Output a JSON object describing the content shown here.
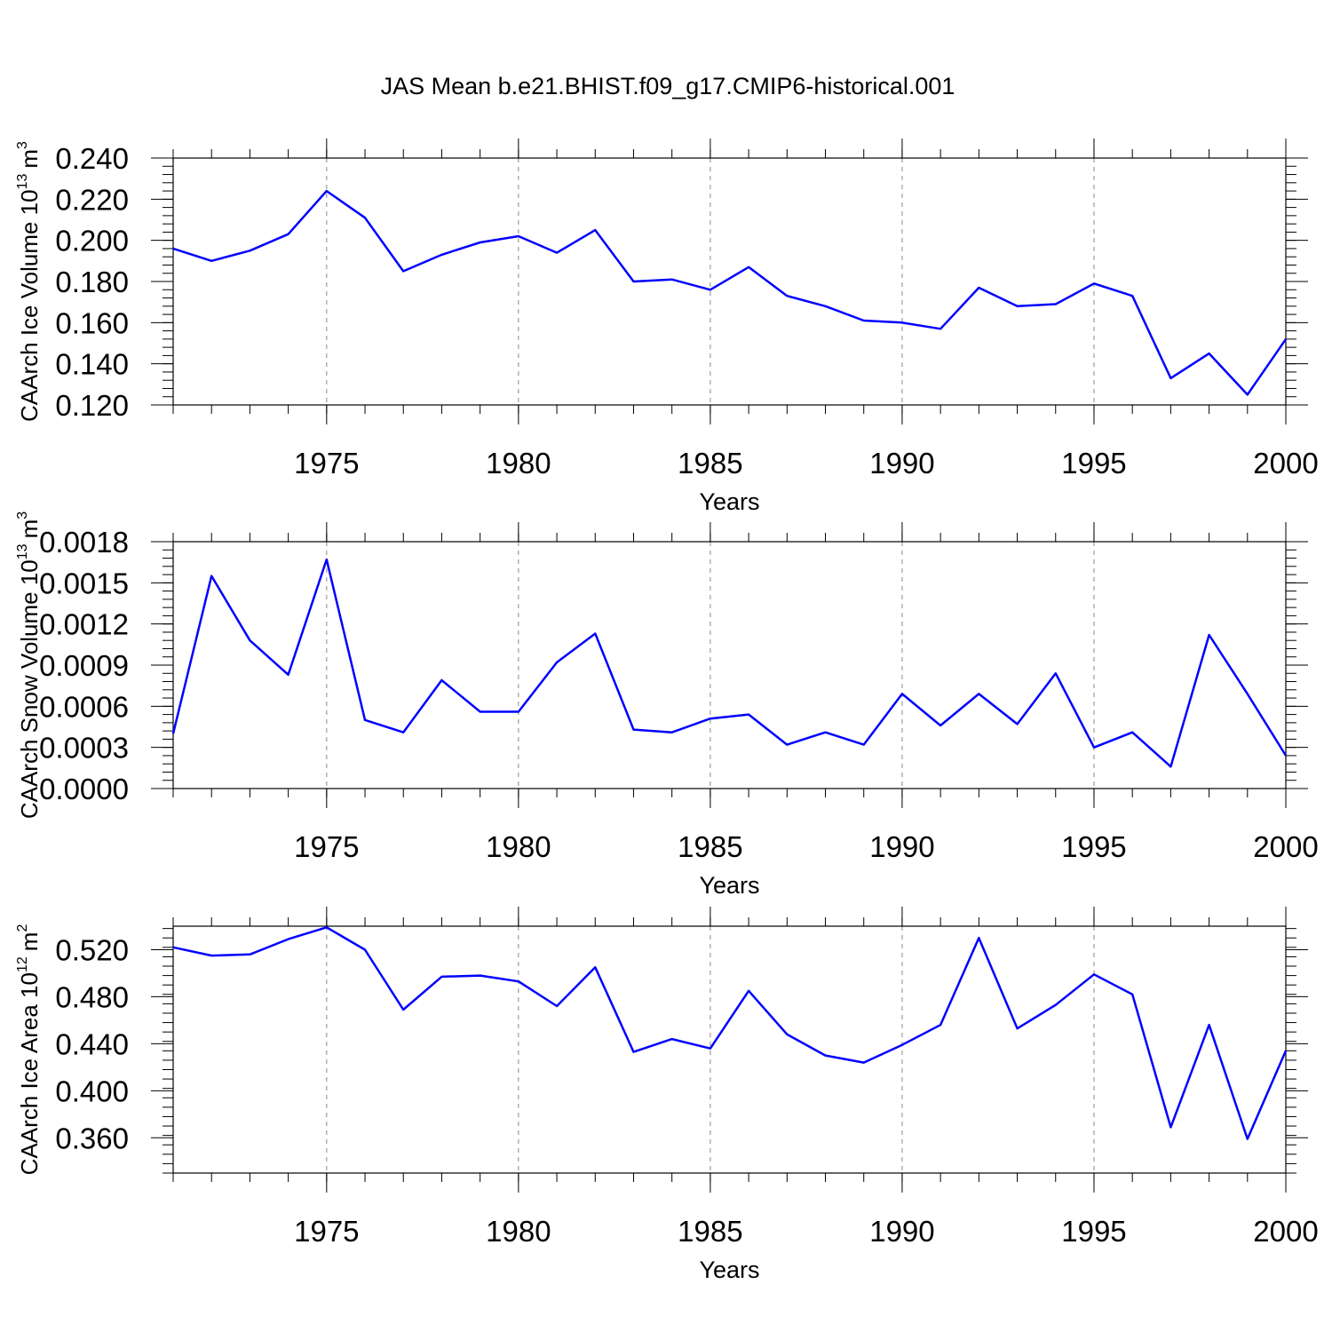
{
  "chart_data": {
    "type": "line",
    "title": "JAS Mean b.e21.BHIST.f09_g17.CMIP6-historical.001",
    "series_color": "#0000ff",
    "x": [
      1971,
      1972,
      1973,
      1974,
      1975,
      1976,
      1977,
      1978,
      1979,
      1980,
      1981,
      1982,
      1983,
      1984,
      1985,
      1986,
      1987,
      1988,
      1989,
      1990,
      1991,
      1992,
      1993,
      1994,
      1995,
      1996,
      1997,
      1998,
      1999,
      2000
    ],
    "xlim": [
      1971,
      2000
    ],
    "x_tick_labels": [
      "1975",
      "1980",
      "1985",
      "1990",
      "1995",
      "2000"
    ],
    "grid": "vertical dashed at major x ticks",
    "panels": [
      {
        "id": "ice-volume",
        "xlabel": "Years",
        "ylabel_text": "CAArch Ice Volume 10",
        "ylabel_exp": "13",
        "ylabel_unit": "m",
        "ylabel_unit_exp": "3",
        "ylim": [
          0.12,
          0.24
        ],
        "y_tick_labels": [
          "0.120",
          "0.140",
          "0.160",
          "0.180",
          "0.200",
          "0.220",
          "0.240"
        ],
        "values": [
          0.196,
          0.19,
          0.195,
          0.203,
          0.224,
          0.211,
          0.185,
          0.193,
          0.199,
          0.202,
          0.194,
          0.205,
          0.18,
          0.181,
          0.176,
          0.187,
          0.173,
          0.168,
          0.161,
          0.16,
          0.157,
          0.177,
          0.168,
          0.169,
          0.179,
          0.173,
          0.133,
          0.145,
          0.125,
          0.152
        ]
      },
      {
        "id": "snow-volume",
        "xlabel": "Years",
        "ylabel_text": "CAArch Snow Volume 10",
        "ylabel_exp": "13",
        "ylabel_unit": "m",
        "ylabel_unit_exp": "3",
        "ylim": [
          0.0,
          0.0018
        ],
        "y_tick_labels": [
          "0.0000",
          "0.0003",
          "0.0006",
          "0.0009",
          "0.0012",
          "0.0015",
          "0.0018"
        ],
        "values": [
          0.0004,
          0.00155,
          0.00108,
          0.00083,
          0.00167,
          0.0005,
          0.00041,
          0.00079,
          0.00056,
          0.00056,
          0.00092,
          0.00113,
          0.00043,
          0.00041,
          0.00051,
          0.00054,
          0.00032,
          0.00041,
          0.00032,
          0.00069,
          0.00046,
          0.00069,
          0.00047,
          0.00084,
          0.0003,
          0.00041,
          0.00016,
          0.00112,
          0.00069,
          0.00024
        ]
      },
      {
        "id": "ice-area",
        "xlabel": "Years",
        "ylabel_text": "CAArch Ice Area 10",
        "ylabel_exp": "12",
        "ylabel_unit": "m",
        "ylabel_unit_exp": "2",
        "ylim": [
          0.33,
          0.54
        ],
        "y_tick_labels": [
          "0.360",
          "0.400",
          "0.440",
          "0.480",
          "0.520"
        ],
        "values": [
          0.522,
          0.515,
          0.516,
          0.529,
          0.539,
          0.52,
          0.469,
          0.497,
          0.498,
          0.493,
          0.472,
          0.505,
          0.433,
          0.444,
          0.436,
          0.485,
          0.448,
          0.43,
          0.424,
          0.439,
          0.456,
          0.53,
          0.453,
          0.473,
          0.499,
          0.482,
          0.369,
          0.456,
          0.359,
          0.434
        ]
      }
    ]
  }
}
